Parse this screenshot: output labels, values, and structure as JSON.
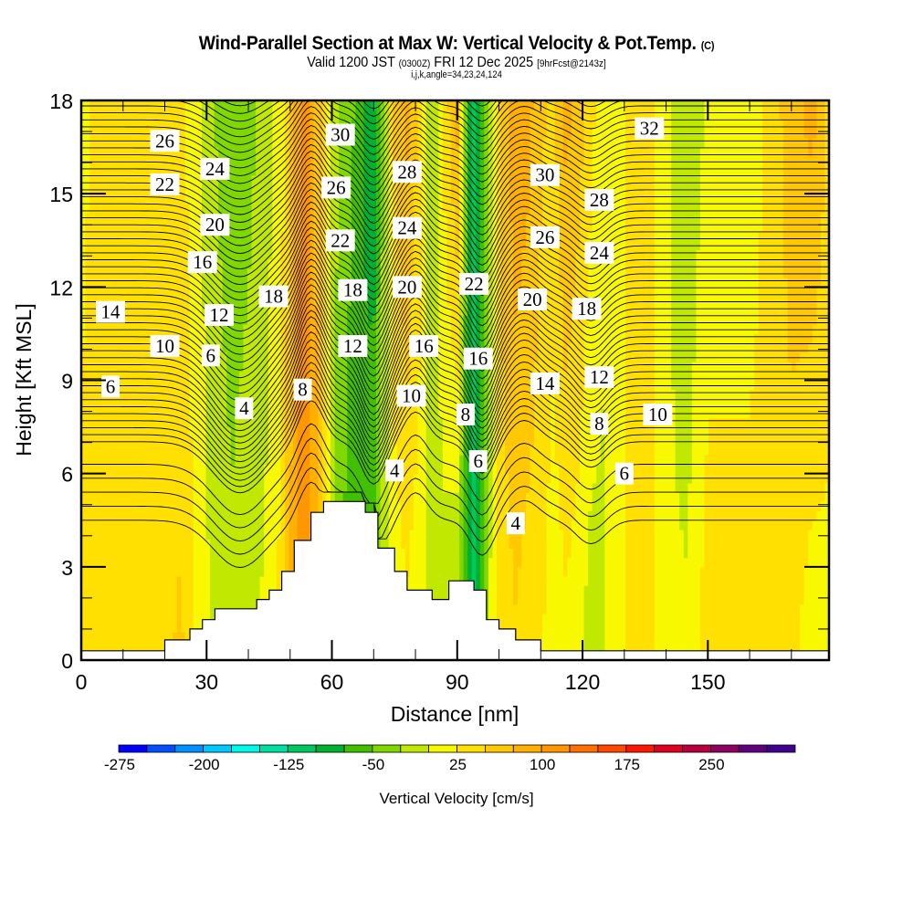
{
  "header": {
    "title": "Wind-Parallel Section at Max W: Vertical Velocity & Pot.Temp.",
    "copyright": "(C)",
    "valid_prefix": "Valid 1200 JST",
    "valid_utc": "(0300Z)",
    "valid_date": "FRI 12 Dec 2025",
    "forecast": "[9hrFcst@2143z]",
    "indices": "i,j,k,angle=34,23,24,124"
  },
  "chart_data": {
    "type": "heatmap",
    "title": "Wind-Parallel Section at Max W: Vertical Velocity & Pot.Temp.",
    "xlabel": "Distance [nm]",
    "ylabel": "Height [Kft MSL]",
    "xlim": [
      0,
      179
    ],
    "ylim": [
      0,
      18
    ],
    "xticks": [
      0,
      30,
      60,
      90,
      120,
      150
    ],
    "yticks": [
      0,
      3,
      6,
      9,
      12,
      15,
      18
    ],
    "colorbar": {
      "title": "Vertical Velocity [cm/s]",
      "levels": [
        -300,
        -275,
        -250,
        -225,
        -200,
        -175,
        -150,
        -125,
        -100,
        -75,
        -50,
        -25,
        0,
        25,
        50,
        75,
        100,
        125,
        150,
        175,
        200,
        225,
        250,
        275,
        300
      ],
      "tick_labels": [
        "-275",
        "-200",
        "-125",
        "-50",
        "25",
        "100",
        "175",
        "250"
      ],
      "colors": [
        "#0000ff",
        "#0050ff",
        "#0090ff",
        "#00c8ff",
        "#00f8e8",
        "#00e0a0",
        "#00c860",
        "#00b030",
        "#40c000",
        "#80d800",
        "#c0e800",
        "#f8f800",
        "#ffe000",
        "#ffc800",
        "#ffb000",
        "#ff9800",
        "#ff7000",
        "#ff4800",
        "#ff1800",
        "#e00020",
        "#b80040",
        "#900060",
        "#600080",
        "#400090"
      ]
    },
    "vertical_velocity_columns": {
      "x": [
        0,
        4,
        8,
        20,
        24,
        28,
        32,
        36,
        40,
        44,
        48,
        51,
        54,
        57,
        60,
        63,
        66,
        68,
        70,
        72,
        75,
        78,
        81,
        84,
        87,
        90,
        92,
        94,
        96,
        98,
        101,
        104,
        107,
        110,
        113,
        116,
        119,
        122,
        125,
        128,
        132,
        136,
        140,
        145,
        150,
        155,
        160,
        165,
        170,
        175,
        179
      ],
      "w_upper": [
        -10,
        10,
        10,
        10,
        5,
        -20,
        -50,
        -70,
        -60,
        -40,
        -10,
        60,
        90,
        30,
        -40,
        -60,
        -80,
        -110,
        -130,
        -60,
        30,
        60,
        20,
        -50,
        10,
        60,
        -60,
        -150,
        -90,
        -40,
        40,
        70,
        60,
        30,
        20,
        60,
        40,
        10,
        -20,
        -10,
        10,
        10,
        -20,
        -50,
        -20,
        -20,
        -20,
        10,
        40,
        60,
        20
      ],
      "w_lower": [
        10,
        10,
        10,
        20,
        30,
        -10,
        -30,
        -40,
        -30,
        -20,
        10,
        70,
        100,
        40,
        -40,
        -80,
        -100,
        -80,
        -60,
        -30,
        -20,
        -10,
        -20,
        -30,
        -40,
        -60,
        -100,
        -130,
        -80,
        -20,
        10,
        20,
        10,
        5,
        -20,
        -10,
        -20,
        -40,
        -30,
        -10,
        10,
        15,
        -20,
        -20,
        15,
        15,
        15,
        15,
        10,
        -20,
        -10
      ]
    },
    "terrain": {
      "x": [
        0,
        20,
        26,
        29,
        32,
        42,
        45,
        48,
        51,
        55,
        58,
        61,
        68,
        71,
        75,
        78,
        84,
        88,
        94,
        97,
        100,
        104,
        110,
        179
      ],
      "height_kft": [
        0.3,
        0.65,
        1.0,
        1.3,
        1.65,
        1.95,
        2.25,
        2.85,
        3.85,
        4.75,
        5.1,
        5.1,
        4.75,
        3.6,
        2.85,
        2.25,
        1.95,
        2.55,
        2.25,
        1.3,
        1.0,
        0.65,
        0.3,
        0.3
      ]
    },
    "isentrope_labels": [
      {
        "text": "26",
        "x": 20,
        "y": 16.7
      },
      {
        "text": "24",
        "x": 32,
        "y": 15.8
      },
      {
        "text": "22",
        "x": 20,
        "y": 15.3
      },
      {
        "text": "20",
        "x": 32,
        "y": 14.0
      },
      {
        "text": "16",
        "x": 29,
        "y": 12.8
      },
      {
        "text": "14",
        "x": 7,
        "y": 11.2
      },
      {
        "text": "18",
        "x": 46,
        "y": 11.7
      },
      {
        "text": "12",
        "x": 33,
        "y": 11.1
      },
      {
        "text": "10",
        "x": 20,
        "y": 10.1
      },
      {
        "text": "6",
        "x": 31,
        "y": 9.8
      },
      {
        "text": "6",
        "x": 7,
        "y": 8.8
      },
      {
        "text": "4",
        "x": 39,
        "y": 8.1
      },
      {
        "text": "30",
        "x": 62,
        "y": 16.9
      },
      {
        "text": "26",
        "x": 61,
        "y": 15.2
      },
      {
        "text": "22",
        "x": 62,
        "y": 13.5
      },
      {
        "text": "18",
        "x": 65,
        "y": 11.9
      },
      {
        "text": "12",
        "x": 65,
        "y": 10.1
      },
      {
        "text": "8",
        "x": 53,
        "y": 8.7
      },
      {
        "text": "28",
        "x": 78,
        "y": 15.7
      },
      {
        "text": "24",
        "x": 78,
        "y": 13.9
      },
      {
        "text": "20",
        "x": 78,
        "y": 12.0
      },
      {
        "text": "16",
        "x": 82,
        "y": 10.1
      },
      {
        "text": "10",
        "x": 79,
        "y": 8.5
      },
      {
        "text": "4",
        "x": 75,
        "y": 6.1
      },
      {
        "text": "22",
        "x": 94,
        "y": 12.1
      },
      {
        "text": "16",
        "x": 95,
        "y": 9.7
      },
      {
        "text": "8",
        "x": 92,
        "y": 7.9
      },
      {
        "text": "6",
        "x": 95,
        "y": 6.4
      },
      {
        "text": "4",
        "x": 104,
        "y": 4.4
      },
      {
        "text": "30",
        "x": 111,
        "y": 15.6
      },
      {
        "text": "26",
        "x": 111,
        "y": 13.6
      },
      {
        "text": "20",
        "x": 108,
        "y": 11.6
      },
      {
        "text": "14",
        "x": 111,
        "y": 8.9
      },
      {
        "text": "28",
        "x": 124,
        "y": 14.8
      },
      {
        "text": "24",
        "x": 124,
        "y": 13.1
      },
      {
        "text": "18",
        "x": 121,
        "y": 11.3
      },
      {
        "text": "12",
        "x": 124,
        "y": 9.1
      },
      {
        "text": "8",
        "x": 124,
        "y": 7.6
      },
      {
        "text": "6",
        "x": 130,
        "y": 6.0
      },
      {
        "text": "10",
        "x": 138,
        "y": 7.9
      },
      {
        "text": "32",
        "x": 136,
        "y": 17.1
      }
    ]
  }
}
